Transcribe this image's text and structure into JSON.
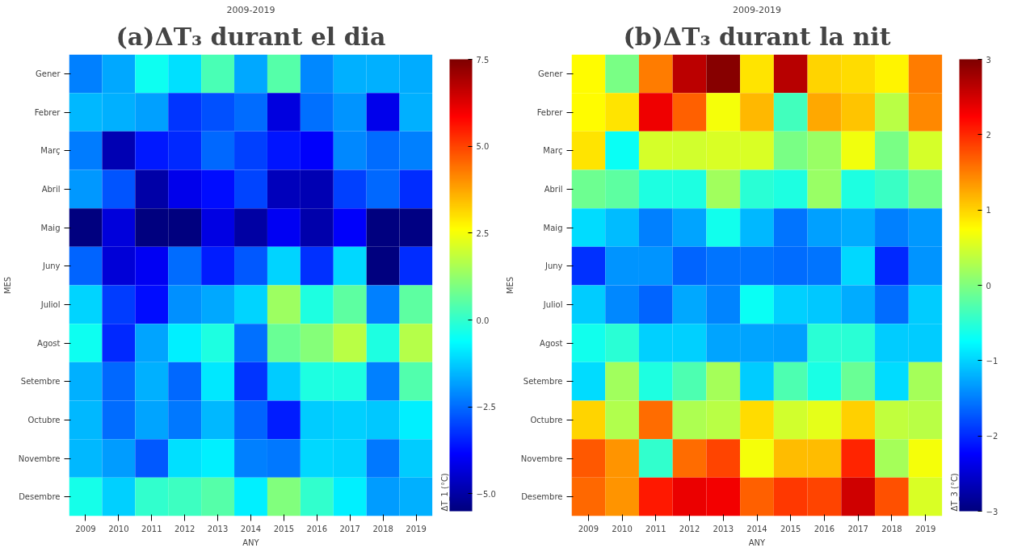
{
  "chart_data": [
    {
      "type": "heatmap",
      "title": "(a)ΔT₃ durant el dia",
      "subtitle": "2009-2019",
      "xlabel": "ANY",
      "ylabel": "MES",
      "clabel": "ΔT_1 (°C)",
      "categories": [
        "2009",
        "2010",
        "2011",
        "2012",
        "2013",
        "2014",
        "2015",
        "2016",
        "2017",
        "2018",
        "2019"
      ],
      "y_categories": [
        "Gener",
        "Febrer",
        "Març",
        "Abril",
        "Maig",
        "Juny",
        "Juliol",
        "Agost",
        "Setembre",
        "Octubre",
        "Novembre",
        "Desembre"
      ],
      "cells": [
        [
          -2.25,
          -1.7,
          -0.47,
          -1.0,
          0.3,
          -1.7,
          0.46,
          -2.1,
          -1.6,
          -1.6,
          -1.65
        ],
        [
          -1.5,
          -1.6,
          -1.8,
          -3.2,
          -2.85,
          -2.5,
          -4.25,
          -2.45,
          -1.95,
          -4.1,
          -1.6
        ],
        [
          -2.3,
          -4.8,
          -3.55,
          -3.35,
          -2.55,
          -3.05,
          -3.6,
          -3.9,
          -2.1,
          -2.5,
          -2.25
        ],
        [
          -1.9,
          -2.8,
          -4.95,
          -4.1,
          -3.7,
          -3.0,
          -4.7,
          -4.8,
          -3.05,
          -2.55,
          -3.3
        ],
        [
          -5.45,
          -4.3,
          -5.45,
          -5.45,
          -4.2,
          -5.0,
          -4.0,
          -4.9,
          -3.9,
          -5.45,
          -5.4
        ],
        [
          -2.6,
          -4.35,
          -4.0,
          -2.5,
          -3.5,
          -2.75,
          -1.15,
          -3.25,
          -1.1,
          -5.45,
          -3.3
        ],
        [
          -1.15,
          -3.1,
          -3.7,
          -2.0,
          -1.7,
          -1.15,
          1.4,
          -0.23,
          0.55,
          -2.2,
          0.55
        ],
        [
          -0.47,
          -3.35,
          -1.75,
          -0.8,
          -0.23,
          -2.45,
          0.7,
          1.1,
          1.75,
          -0.23,
          1.7
        ],
        [
          -1.6,
          -2.55,
          -1.6,
          -2.55,
          -0.9,
          -3.2,
          -1.25,
          -0.23,
          -0.23,
          -2.2,
          0.4
        ],
        [
          -1.5,
          -2.5,
          -1.75,
          -2.35,
          -1.5,
          -2.6,
          -3.5,
          -1.25,
          -1.2,
          -1.3,
          -0.8
        ],
        [
          -1.5,
          -1.85,
          -2.75,
          -1.0,
          -0.8,
          -2.25,
          -2.35,
          -1.1,
          -1.15,
          -2.35,
          -1.25
        ],
        [
          -0.35,
          -1.2,
          0.0,
          0.15,
          0.45,
          -0.8,
          1.0,
          0.0,
          -0.8,
          -1.85,
          -1.6
        ]
      ],
      "clim": [
        -5.5,
        7.5
      ],
      "cticks": [
        {
          "value": -5.0,
          "label": "−5.0"
        },
        {
          "value": -2.5,
          "label": "−2.5"
        },
        {
          "value": 0.0,
          "label": "0.0"
        },
        {
          "value": 2.5,
          "label": "2.5"
        },
        {
          "value": 5.0,
          "label": "5.0"
        },
        {
          "value": 7.5,
          "label": "7.5"
        }
      ]
    },
    {
      "type": "heatmap",
      "title": "(b)ΔT₃ durant la nit",
      "subtitle": "2009-2019",
      "xlabel": "ANY",
      "ylabel": "MES",
      "clabel": "ΔT_3 (°C)",
      "categories": [
        "2009",
        "2010",
        "2011",
        "2012",
        "2013",
        "2014",
        "2015",
        "2016",
        "2017",
        "2018",
        "2019"
      ],
      "y_categories": [
        "Gener",
        "Febrer",
        "Març",
        "Abril",
        "Maig",
        "Juny",
        "Juliol",
        "Agost",
        "Setembre",
        "Octubre",
        "Novembre",
        "Desembre"
      ],
      "cells": [
        [
          0.77,
          -0.03,
          1.5,
          2.63,
          2.95,
          0.9,
          2.66,
          1.0,
          0.94,
          0.81,
          1.5
        ],
        [
          0.77,
          0.9,
          2.33,
          1.67,
          0.7,
          1.16,
          -0.36,
          1.25,
          1.1,
          0.35,
          1.44
        ],
        [
          0.9,
          -0.68,
          0.5,
          0.48,
          0.52,
          0.52,
          -0.03,
          0.16,
          0.67,
          -0.03,
          0.5
        ],
        [
          -0.1,
          -0.2,
          -0.57,
          -0.57,
          0.2,
          -0.5,
          -0.57,
          0.16,
          -0.57,
          -0.4,
          -0.06
        ],
        [
          -0.95,
          -1.13,
          -1.49,
          -1.28,
          -0.64,
          -1.16,
          -1.55,
          -1.31,
          -1.22,
          -1.49,
          -1.34
        ],
        [
          -1.95,
          -1.37,
          -1.37,
          -1.66,
          -1.55,
          -1.55,
          -1.6,
          -1.55,
          -0.98,
          -2.01,
          -1.37
        ],
        [
          -1.04,
          -1.43,
          -1.66,
          -1.25,
          -1.46,
          -0.68,
          -1.01,
          -1.07,
          -1.22,
          -1.6,
          -1.04
        ],
        [
          -0.64,
          -0.5,
          -1.01,
          -1.01,
          -1.28,
          -1.28,
          -1.31,
          -0.5,
          -0.5,
          -1.04,
          -1.04
        ],
        [
          -0.95,
          0.2,
          -0.57,
          -0.3,
          0.23,
          -1.04,
          -0.3,
          -0.6,
          -0.13,
          -0.95,
          0.23
        ],
        [
          1.0,
          0.3,
          1.6,
          0.28,
          0.35,
          0.94,
          0.48,
          0.6,
          1.03,
          0.38,
          0.35
        ],
        [
          1.73,
          1.38,
          -0.46,
          1.6,
          1.83,
          0.7,
          1.13,
          1.13,
          2.02,
          0.23,
          0.7
        ],
        [
          1.63,
          1.38,
          2.1,
          2.36,
          2.3,
          1.67,
          1.9,
          1.83,
          2.52,
          1.76,
          0.52
        ]
      ],
      "clim": [
        -3,
        3
      ],
      "cticks": [
        {
          "value": -3,
          "label": "−3"
        },
        {
          "value": -2,
          "label": "−2"
        },
        {
          "value": -1,
          "label": "−1"
        },
        0,
        1,
        2,
        3
      ]
    }
  ]
}
